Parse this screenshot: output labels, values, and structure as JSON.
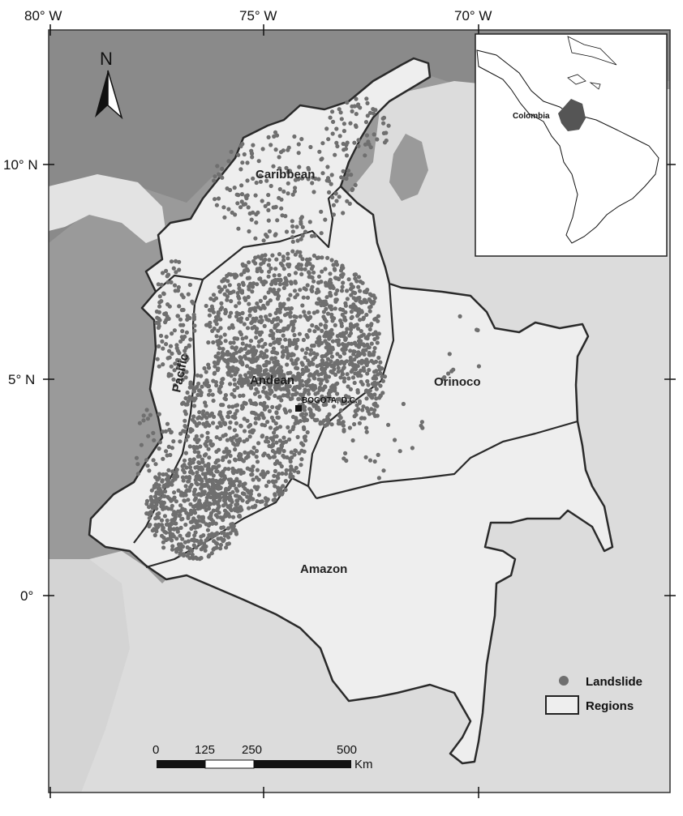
{
  "axes": {
    "longitude_labels": [
      "80° W",
      "75° W",
      "70° W"
    ],
    "latitude_labels": [
      "10° N",
      "5° N",
      "0°"
    ]
  },
  "north_arrow": {
    "label": "N"
  },
  "regions": [
    {
      "id": "caribbean",
      "label": "Caribbean"
    },
    {
      "id": "pacific",
      "label": "Pacific"
    },
    {
      "id": "andean",
      "label": "Andean"
    },
    {
      "id": "orinoco",
      "label": "Orinoco"
    },
    {
      "id": "amazon",
      "label": "Amazon"
    }
  ],
  "capital": {
    "label": "BOGOTA, D.C."
  },
  "inset": {
    "label": "Colombia"
  },
  "legend": {
    "items": [
      {
        "label": "Landslide",
        "symbol": "dot",
        "color": "#777777"
      },
      {
        "label": "Regions",
        "symbol": "box"
      }
    ]
  },
  "scale_bar": {
    "ticks": [
      "0",
      "125",
      "250",
      "500"
    ],
    "unit": "Km"
  },
  "colors": {
    "ocean": "#8f8f8f",
    "land": "#d9d9d9",
    "colombia": "#ececec",
    "boundary": "#2a2a2a",
    "landslide": "#6f6f6f"
  }
}
